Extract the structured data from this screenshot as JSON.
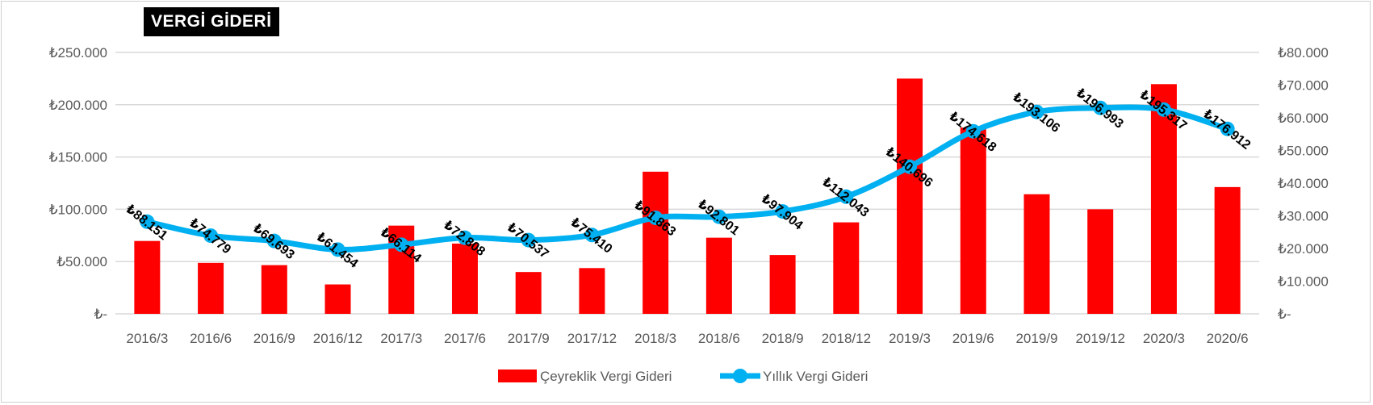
{
  "chart_data": {
    "type": "bar+line",
    "title": "VERGİ GİDERİ",
    "categories": [
      "2016/3",
      "2016/6",
      "2016/9",
      "2016/12",
      "2017/3",
      "2017/6",
      "2017/9",
      "2017/12",
      "2018/3",
      "2018/6",
      "2018/9",
      "2018/12",
      "2019/3",
      "2019/6",
      "2019/9",
      "2019/12",
      "2020/3",
      "2020/6"
    ],
    "series": [
      {
        "name": "Çeyreklik Vergi Gideri",
        "type": "bar",
        "axis": "right",
        "color": "#ff0000",
        "values": [
          22300,
          15600,
          14900,
          9000,
          27000,
          21500,
          12800,
          14000,
          43500,
          23300,
          18000,
          28000,
          72000,
          57000,
          36600,
          32000,
          70300,
          38800
        ]
      },
      {
        "name": "Yıllık Vergi Gideri",
        "type": "line",
        "axis": "left",
        "color": "#00b0f0",
        "values": [
          88151,
          74779,
          69693,
          61454,
          66114,
          72808,
          70537,
          75410,
          91863,
          92801,
          97904,
          112043,
          140696,
          174618,
          193106,
          196993,
          195317,
          176912
        ],
        "labels": [
          "₺88.151",
          "₺74.779",
          "₺69.693",
          "₺61.454",
          "₺66.114",
          "₺72.808",
          "₺70.537",
          "₺75.410",
          "₺91.863",
          "₺92.801",
          "₺97.904",
          "₺112.043",
          "₺140.696",
          "₺174.618",
          "₺193.106",
          "₺196.993",
          "₺195.317",
          "₺176.912"
        ]
      }
    ],
    "y_left": {
      "min": 0,
      "max": 250000,
      "ticks": [
        0,
        50000,
        100000,
        150000,
        200000,
        250000
      ],
      "tick_labels": [
        "₺-",
        "₺50.000",
        "₺100.000",
        "₺150.000",
        "₺200.000",
        "₺250.000"
      ]
    },
    "y_right": {
      "min": 0,
      "max": 80000,
      "ticks": [
        0,
        10000,
        20000,
        30000,
        40000,
        50000,
        60000,
        70000,
        80000
      ],
      "tick_labels": [
        "₺-",
        "₺10.000",
        "₺20.000",
        "₺30.000",
        "₺40.000",
        "₺50.000",
        "₺60.000",
        "₺70.000",
        "₺80.000"
      ]
    },
    "grid": true,
    "legend": "bottom-center"
  }
}
